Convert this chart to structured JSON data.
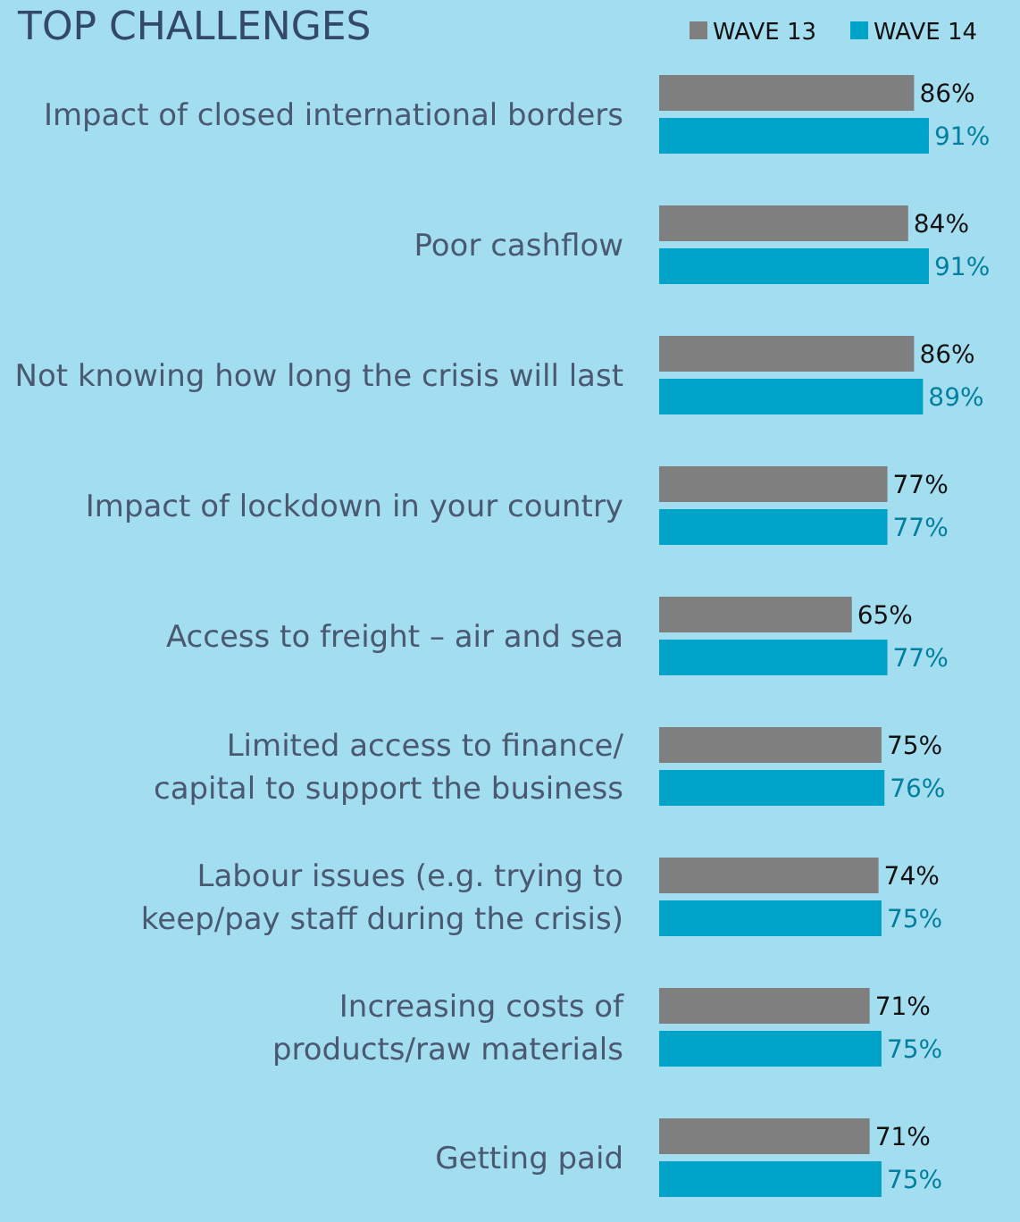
{
  "chart_data": {
    "type": "bar",
    "orientation": "horizontal",
    "title": "TOP CHALLENGES",
    "data_labels": true,
    "legend": "top right",
    "categories": [
      "Impact of closed international borders",
      "Poor cashflow",
      "Not knowing how long the crisis will last",
      "Impact of lockdown in your country",
      "Access to freight – air and sea",
      "Limited access to finance/\ncapital  to support the business",
      "Labour issues  (e.g. trying to\nkeep/pay staff during the crisis)",
      "Increasing costs of\nproducts/raw materials",
      "Getting paid"
    ],
    "series": [
      {
        "name": "WAVE 13",
        "color": "#7f7f7f",
        "values": [
          86,
          84,
          86,
          77,
          65,
          75,
          74,
          71,
          71
        ],
        "value_labels": [
          "86%",
          "84%",
          "86%",
          "77%",
          "65%",
          "75%",
          "74%",
          "71%",
          "71%"
        ]
      },
      {
        "name": "WAVE 14",
        "color": "#00a3c8",
        "values": [
          91,
          91,
          89,
          77,
          77,
          76,
          75,
          75,
          75
        ],
        "value_labels": [
          "91%",
          "91%",
          "89%",
          "77%",
          "77%",
          "76%",
          "75%",
          "75%",
          "75%"
        ]
      }
    ]
  }
}
